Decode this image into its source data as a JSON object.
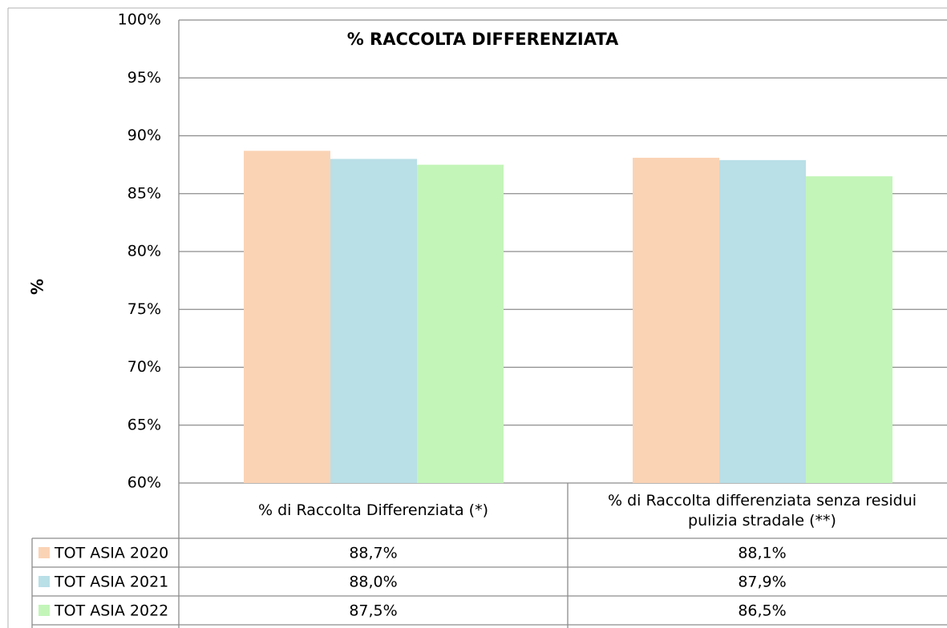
{
  "chart_data": {
    "type": "bar",
    "title": "% RACCOLTA DIFFERENZIATA",
    "y_label": "%",
    "categories": [
      "% di Raccolta Differenziata (*)",
      "% di Raccolta differenziata senza residui pulizia stradale (**)"
    ],
    "series": [
      {
        "name": "TOT ASIA 2020",
        "color": "#fad3b5",
        "values": [
          88.7,
          88.1
        ],
        "value_labels": [
          "88,7%",
          "88,1%"
        ]
      },
      {
        "name": "TOT ASIA 2021",
        "color": "#b9dfe7",
        "values": [
          88.0,
          87.9
        ],
        "value_labels": [
          "88,0%",
          "87,9%"
        ]
      },
      {
        "name": "TOT ASIA 2022",
        "color": "#c3f5b9",
        "values": [
          87.5,
          86.5
        ],
        "value_labels": [
          "87,5%",
          "86,5%"
        ]
      }
    ],
    "ylim": [
      60,
      100
    ],
    "yticks": [
      {
        "value": 60,
        "label": "60%"
      },
      {
        "value": 65,
        "label": "65%"
      },
      {
        "value": 70,
        "label": "70%"
      },
      {
        "value": 75,
        "label": "75%"
      },
      {
        "value": 80,
        "label": "80%"
      },
      {
        "value": 85,
        "label": "85%"
      },
      {
        "value": 90,
        "label": "90%"
      },
      {
        "value": 95,
        "label": "95%"
      },
      {
        "value": 100,
        "label": "100%"
      }
    ],
    "grid": true
  }
}
